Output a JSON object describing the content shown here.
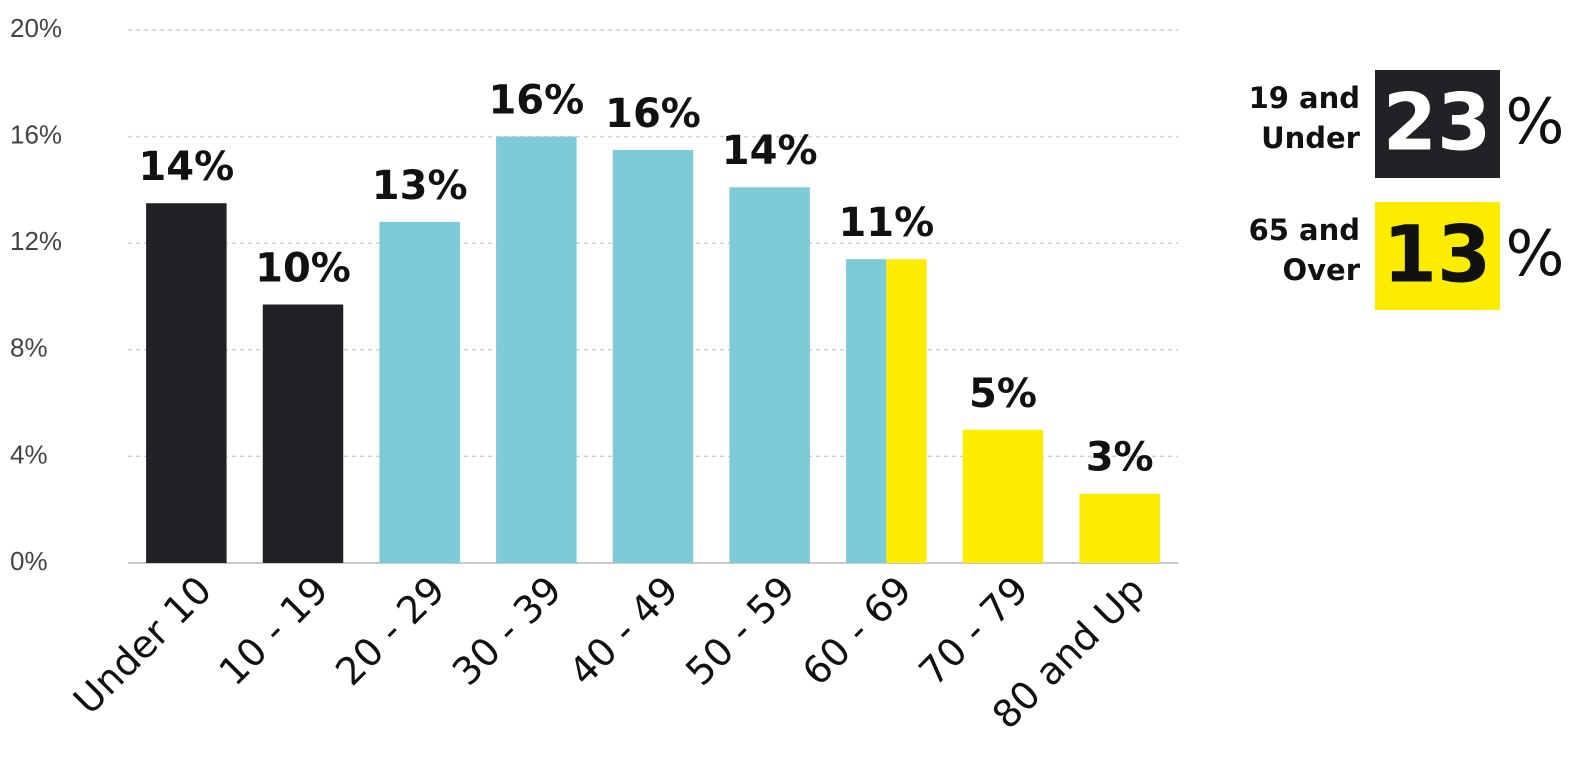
{
  "chart_data": {
    "type": "bar",
    "categories": [
      "Under 10",
      "10 - 19",
      "20 - 29",
      "30 - 39",
      "40 - 49",
      "50 - 59",
      "60 - 69",
      "70 - 79",
      "80 and Up"
    ],
    "values": [
      13.5,
      9.7,
      12.8,
      16.0,
      15.5,
      14.1,
      11.4,
      5.0,
      2.6
    ],
    "value_labels": [
      "14%",
      "10%",
      "13%",
      "16%",
      "16%",
      "14%",
      "11%",
      "5%",
      "3%"
    ],
    "colors": [
      "#222226",
      "#222226",
      "#7ccbd6",
      "#7ccbd6",
      "#7ccbd6",
      "#7ccbd6",
      [
        "#7ccbd6",
        "#fced00"
      ],
      "#fced00",
      "#fced00"
    ],
    "ylim": [
      0,
      20
    ],
    "yticks": [
      {
        "value": 0,
        "label": "0%"
      },
      {
        "value": 4,
        "label": "4%"
      },
      {
        "value": 8,
        "label": "8%"
      },
      {
        "value": 12,
        "label": "12%"
      },
      {
        "value": 16,
        "label": "16%"
      },
      {
        "value": 20,
        "label": "20%"
      }
    ],
    "grid": true,
    "callouts": [
      {
        "label_lines": [
          "19 and",
          "Under"
        ],
        "value": 23,
        "unit": "%",
        "color": "#222226"
      },
      {
        "label_lines": [
          "65 and",
          "Over"
        ],
        "value": 13,
        "unit": "%",
        "color": "#fced00"
      }
    ]
  }
}
